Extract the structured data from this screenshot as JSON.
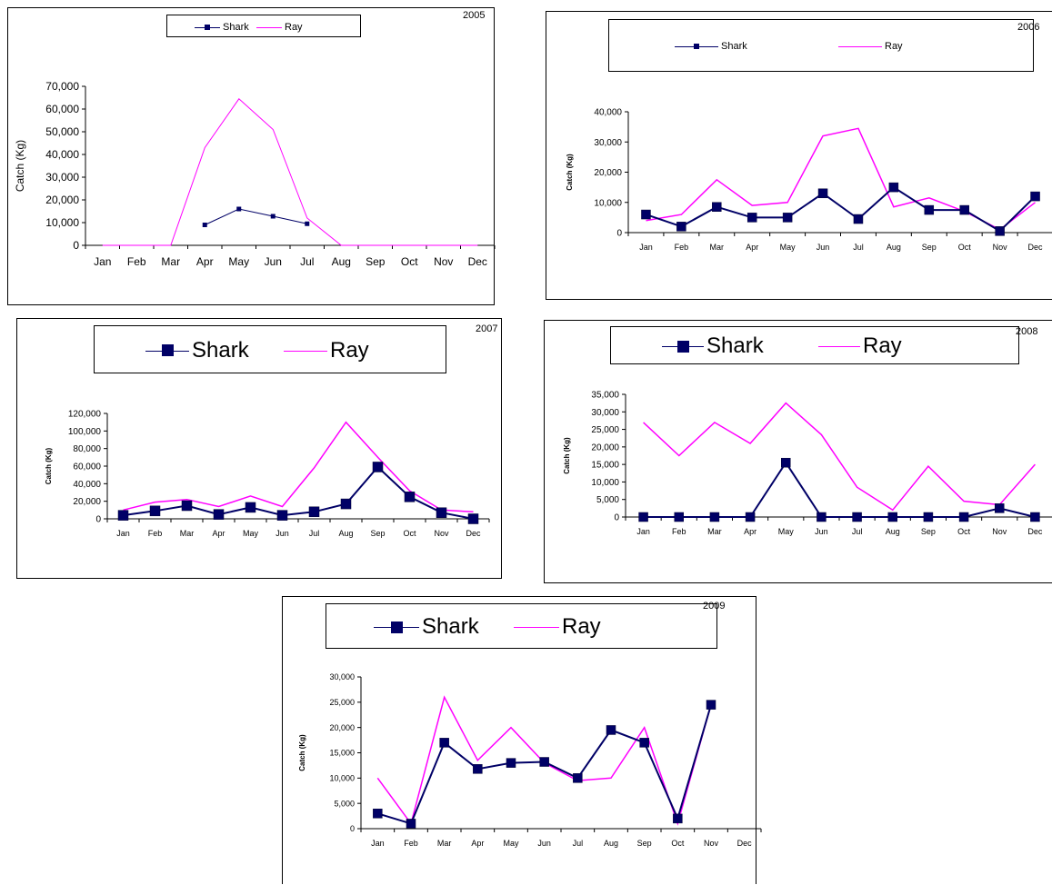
{
  "colors": {
    "shark": "#000066",
    "ray": "#ff00ff",
    "axis": "#000000"
  },
  "chart_data": [
    {
      "type": "line",
      "title": "2005",
      "ylabel": "Catch  (Kg)",
      "ylim": [
        0,
        70000
      ],
      "yticks": [
        "0",
        "10,000",
        "20,000",
        "30,000",
        "40,000",
        "50,000",
        "60,000",
        "70,000"
      ],
      "categories": [
        "Jan",
        "Feb",
        "Mar",
        "Apr",
        "May",
        "Jun",
        "Jul",
        "Aug",
        "Sep",
        "Oct",
        "Nov",
        "Dec"
      ],
      "legend_position": "top",
      "series": [
        {
          "name": "Shark",
          "values": [
            null,
            null,
            null,
            9000,
            16000,
            12800,
            9500,
            null,
            null,
            null,
            null,
            null
          ]
        },
        {
          "name": "Ray",
          "values": [
            0,
            0,
            0,
            43000,
            64500,
            51000,
            12000,
            0,
            0,
            0,
            0,
            0
          ]
        }
      ]
    },
    {
      "type": "line",
      "title": "2006",
      "ylabel": "Catch (Kg)",
      "ylim": [
        0,
        40000
      ],
      "yticks": [
        "0",
        "10,000",
        "20,000",
        "30,000",
        "40,000"
      ],
      "categories": [
        "Jan",
        "Feb",
        "Mar",
        "Apr",
        "May",
        "Jun",
        "Jul",
        "Aug",
        "Sep",
        "Oct",
        "Nov",
        "Dec"
      ],
      "legend_position": "top",
      "series": [
        {
          "name": "Shark",
          "values": [
            6000,
            2000,
            8500,
            5000,
            5000,
            13000,
            4500,
            15000,
            7500,
            7500,
            500,
            12000
          ]
        },
        {
          "name": "Ray",
          "values": [
            4000,
            6000,
            17500,
            9000,
            10000,
            32000,
            34500,
            8500,
            11500,
            7000,
            1000,
            10000
          ]
        }
      ]
    },
    {
      "type": "line",
      "title": "2007",
      "ylabel": "Catch (Kg)",
      "ylim": [
        0,
        120000
      ],
      "yticks": [
        "0",
        "20,000",
        "40,000",
        "60,000",
        "80,000",
        "100,000",
        "120,000"
      ],
      "categories": [
        "Jan",
        "Feb",
        "Mar",
        "Apr",
        "May",
        "Jun",
        "Jul",
        "Aug",
        "Sep",
        "Oct",
        "Nov",
        "Dec"
      ],
      "legend_position": "top",
      "series": [
        {
          "name": "Shark",
          "values": [
            4000,
            9000,
            15000,
            5000,
            13000,
            4000,
            8000,
            17000,
            59000,
            25000,
            7000,
            0
          ]
        },
        {
          "name": "Ray",
          "values": [
            10000,
            19000,
            22000,
            14000,
            26000,
            14000,
            58000,
            110000,
            70000,
            32000,
            10000,
            8000
          ]
        }
      ]
    },
    {
      "type": "line",
      "title": "2008",
      "ylabel": "Catch (Kg)",
      "ylim": [
        0,
        35000
      ],
      "yticks": [
        "0",
        "5,000",
        "10,000",
        "15,000",
        "20,000",
        "25,000",
        "30,000",
        "35,000"
      ],
      "categories": [
        "Jan",
        "Feb",
        "Mar",
        "Apr",
        "May",
        "Jun",
        "Jul",
        "Aug",
        "Sep",
        "Oct",
        "Nov",
        "Dec"
      ],
      "legend_position": "top",
      "series": [
        {
          "name": "Shark",
          "values": [
            0,
            0,
            0,
            0,
            15500,
            0,
            0,
            0,
            0,
            0,
            2500,
            0
          ]
        },
        {
          "name": "Ray",
          "values": [
            27000,
            17500,
            27000,
            21000,
            32500,
            23500,
            8500,
            2000,
            14500,
            4500,
            3500,
            15000
          ]
        }
      ]
    },
    {
      "type": "line",
      "title": "2009",
      "ylabel": "Catch (Kg)",
      "ylim": [
        0,
        30000
      ],
      "yticks": [
        "0",
        "5,000",
        "10,000",
        "15,000",
        "20,000",
        "25,000",
        "30,000"
      ],
      "categories": [
        "Jan",
        "Feb",
        "Mar",
        "Apr",
        "May",
        "Jun",
        "Jul",
        "Aug",
        "Sep",
        "Oct",
        "Nov",
        "Dec"
      ],
      "legend_position": "top",
      "series": [
        {
          "name": "Shark",
          "values": [
            3000,
            1000,
            17000,
            11800,
            13000,
            13200,
            10000,
            19500,
            17000,
            2000,
            24500,
            null
          ]
        },
        {
          "name": "Ray",
          "values": [
            10000,
            1000,
            26000,
            13500,
            20000,
            13000,
            9500,
            10000,
            20000,
            1000,
            24500,
            null
          ]
        }
      ]
    }
  ]
}
